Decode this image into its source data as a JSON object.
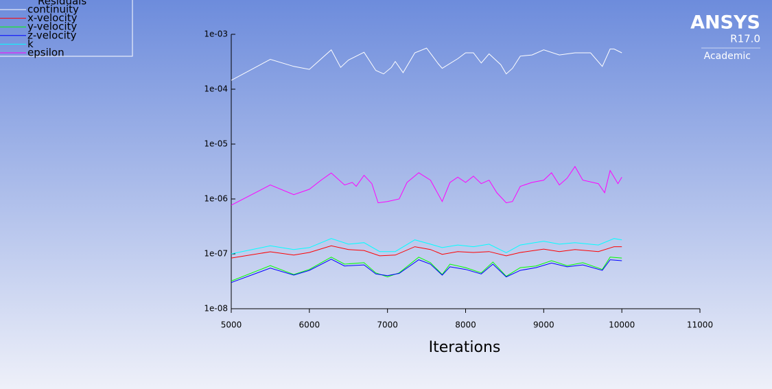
{
  "chart_data": {
    "type": "line",
    "xlabel": "Iterations",
    "legend_title": "Residuals",
    "legend": "top-left",
    "yscale": "log",
    "xlim": [
      5000,
      11000
    ],
    "ylim": [
      1e-08,
      0.001
    ],
    "xticks": [
      5000,
      6000,
      7000,
      8000,
      9000,
      10000,
      11000
    ],
    "yticks": [
      {
        "value": 1e-08,
        "label": "1e-08"
      },
      {
        "value": 1e-07,
        "label": "1e-07"
      },
      {
        "value": 1e-06,
        "label": "1e-06"
      },
      {
        "value": 1e-05,
        "label": "1e-05"
      },
      {
        "value": 0.0001,
        "label": "1e-04"
      },
      {
        "value": 0.001,
        "label": "1e-03"
      }
    ],
    "series": [
      {
        "name": "continuity",
        "color": "#ffffff",
        "x": [
          5000,
          5500,
          5800,
          6000,
          6280,
          6400,
          6500,
          6700,
          6850,
          6950,
          7050,
          7100,
          7200,
          7350,
          7500,
          7650,
          7700,
          7900,
          8000,
          8100,
          8200,
          8300,
          8450,
          8520,
          8600,
          8700,
          8850,
          9000,
          9200,
          9400,
          9600,
          9750,
          9850,
          9900,
          10000
        ],
        "values": [
          0.000145,
          0.00035,
          0.00026,
          0.00023,
          0.00052,
          0.00025,
          0.00034,
          0.00047,
          0.00022,
          0.00019,
          0.00025,
          0.00032,
          0.0002,
          0.00046,
          0.00056,
          0.00029,
          0.00024,
          0.00036,
          0.00046,
          0.00046,
          0.0003,
          0.00044,
          0.00028,
          0.00019,
          0.00024,
          0.0004,
          0.00042,
          0.00052,
          0.00042,
          0.00046,
          0.00046,
          0.00026,
          0.00054,
          0.00054,
          0.00046
        ]
      },
      {
        "name": "x-velocity",
        "color": "#ff0000",
        "x": [
          5000,
          5500,
          5800,
          6000,
          6280,
          6500,
          6700,
          6900,
          7100,
          7350,
          7550,
          7700,
          7900,
          8100,
          8300,
          8520,
          8700,
          9000,
          9200,
          9400,
          9700,
          9900,
          10000
        ],
        "values": [
          8.4e-08,
          1.09e-07,
          9.5e-08,
          1.06e-07,
          1.4e-07,
          1.2e-07,
          1.15e-07,
          9.2e-08,
          9.5e-08,
          1.35e-07,
          1.2e-07,
          9.8e-08,
          1.1e-07,
          1.06e-07,
          1.1e-07,
          9.2e-08,
          1.06e-07,
          1.22e-07,
          1.1e-07,
          1.2e-07,
          1.1e-07,
          1.35e-07,
          1.35e-07
        ]
      },
      {
        "name": "y-velocity",
        "color": "#00ff00",
        "x": [
          5000,
          5500,
          5800,
          6000,
          6280,
          6450,
          6700,
          6850,
          7000,
          7150,
          7400,
          7550,
          7700,
          7800,
          8000,
          8200,
          8350,
          8520,
          8700,
          8900,
          9100,
          9300,
          9500,
          9750,
          9850,
          10000
        ],
        "values": [
          3.2e-08,
          6.1e-08,
          4.2e-08,
          5.2e-08,
          8.7e-08,
          6.5e-08,
          6.9e-08,
          4.5e-08,
          3.8e-08,
          4.5e-08,
          8.7e-08,
          6.9e-08,
          4.2e-08,
          6.5e-08,
          5.6e-08,
          4.5e-08,
          7.1e-08,
          3.9e-08,
          5.6e-08,
          6e-08,
          7.5e-08,
          6.1e-08,
          6.9e-08,
          5.2e-08,
          8.7e-08,
          8.4e-08
        ]
      },
      {
        "name": "z-velocity",
        "color": "#0000ff",
        "x": [
          5000,
          5500,
          5800,
          6000,
          6280,
          6450,
          6700,
          6850,
          7000,
          7150,
          7400,
          7550,
          7700,
          7800,
          8000,
          8200,
          8350,
          8520,
          8700,
          8900,
          9100,
          9300,
          9500,
          9750,
          9850,
          10000
        ],
        "values": [
          3e-08,
          5.5e-08,
          4.1e-08,
          5e-08,
          8e-08,
          6e-08,
          6.3e-08,
          4.3e-08,
          4e-08,
          4.4e-08,
          7.8e-08,
          6.5e-08,
          4.1e-08,
          5.8e-08,
          5.2e-08,
          4.3e-08,
          6.5e-08,
          3.8e-08,
          5e-08,
          5.6e-08,
          6.8e-08,
          5.8e-08,
          6.3e-08,
          5e-08,
          7.8e-08,
          7.5e-08
        ]
      },
      {
        "name": "k",
        "color": "#00ffff",
        "x": [
          5000,
          5500,
          5800,
          6000,
          6280,
          6500,
          6700,
          6900,
          7100,
          7350,
          7550,
          7700,
          7900,
          8100,
          8300,
          8520,
          8700,
          9000,
          9200,
          9400,
          9700,
          9900,
          10000
        ],
        "values": [
          1e-07,
          1.4e-07,
          1.2e-07,
          1.3e-07,
          1.9e-07,
          1.5e-07,
          1.6e-07,
          1.1e-07,
          1.1e-07,
          1.8e-07,
          1.5e-07,
          1.3e-07,
          1.45e-07,
          1.35e-07,
          1.5e-07,
          1.05e-07,
          1.45e-07,
          1.7e-07,
          1.5e-07,
          1.6e-07,
          1.45e-07,
          1.9e-07,
          1.8e-07
        ]
      },
      {
        "name": "epsilon",
        "color": "#ff00ff",
        "x": [
          5000,
          5500,
          5800,
          6000,
          6150,
          6280,
          6450,
          6550,
          6600,
          6700,
          6800,
          6880,
          7000,
          7150,
          7250,
          7400,
          7550,
          7700,
          7800,
          7900,
          8000,
          8100,
          8200,
          8300,
          8400,
          8520,
          8600,
          8700,
          8850,
          9000,
          9100,
          9200,
          9300,
          9400,
          9500,
          9700,
          9780,
          9850,
          9950,
          10000
        ],
        "values": [
          7.7e-07,
          1.8e-06,
          1.2e-06,
          1.5e-06,
          2.2e-06,
          2.98e-06,
          1.8e-06,
          2e-06,
          1.7e-06,
          2.7e-06,
          1.9e-06,
          8.5e-07,
          9e-07,
          1e-06,
          2e-06,
          3e-06,
          2.2e-06,
          9e-07,
          2e-06,
          2.5e-06,
          2e-06,
          2.6e-06,
          1.9e-06,
          2.2e-06,
          1.3e-06,
          8.5e-07,
          9e-07,
          1.7e-06,
          2e-06,
          2.2e-06,
          3e-06,
          1.8e-06,
          2.4e-06,
          3.9e-06,
          2.2e-06,
          1.9e-06,
          1.3e-06,
          3.3e-06,
          1.9e-06,
          2.5e-06
        ]
      }
    ]
  },
  "logo": {
    "brand": "ANSYS",
    "version": "R17.0",
    "edition": "Academic"
  }
}
